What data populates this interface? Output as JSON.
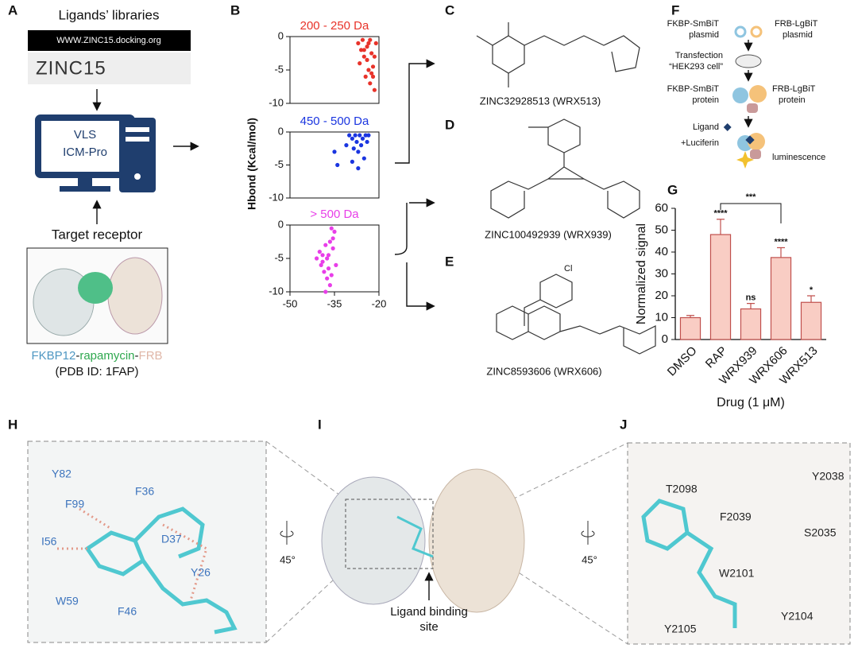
{
  "panel_labels": [
    "A",
    "B",
    "C",
    "D",
    "E",
    "F",
    "G",
    "H",
    "I",
    "J"
  ],
  "a": {
    "title": "Ligands’ libraries",
    "url": "WWW.ZINC15.docking.org",
    "database": "ZINC15",
    "software": [
      "VLS",
      "ICM-Pro"
    ],
    "receptor_label": "Target receptor",
    "complex": [
      "FKBP12",
      "-",
      "rapamycin",
      "-",
      "FRB"
    ],
    "pdb": "(PDB ID: 1FAP)"
  },
  "c": {
    "caption": "ZINC32928513 (WRX513)"
  },
  "d": {
    "caption": "ZINC100492939 (WRX939)"
  },
  "e": {
    "caption": "ZINC8593606 (WRX606)"
  },
  "f": {
    "smbit_plasmid": [
      "FKBP-SmBiT",
      "plasmid"
    ],
    "lgbit_plasmid": [
      "FRB-LgBiT",
      "plasmid"
    ],
    "transfection": [
      "Transfection",
      "“HEK293 cell”"
    ],
    "smbit_protein": [
      "FKBP-SmBiT",
      "protein"
    ],
    "lgbit_protein": [
      "FRB-LgBiT",
      "protein"
    ],
    "ligand": [
      "Ligand",
      "+Luciferin"
    ],
    "readout": "luminescence"
  },
  "h": {
    "residues": [
      "Y82",
      "F36",
      "F99",
      "D37",
      "I56",
      "Y26",
      "W59",
      "F46"
    ]
  },
  "i": {
    "rotation": "45°",
    "site": [
      "Ligand binding",
      "site"
    ]
  },
  "j": {
    "residues": [
      "T2098",
      "Y2038",
      "F2039",
      "S2035",
      "W2101",
      "Y2104",
      "Y2105"
    ]
  },
  "chart_data": [
    {
      "type": "scatter",
      "title": "200 - 250 Da",
      "color": "#e8332a",
      "xlim": [
        -50,
        -20
      ],
      "ylim": [
        -10,
        0
      ],
      "yticks": [
        0,
        -5,
        -10
      ],
      "x": [
        -27,
        -26.5,
        -26,
        -25.5,
        -25,
        -24.5,
        -24,
        -23.5,
        -23,
        -22.5,
        -22,
        -21.5,
        -21,
        -24,
        -23,
        -22,
        -25,
        -21.5,
        -22.5,
        -23.5
      ],
      "values": [
        -1,
        -4,
        -2,
        -0.5,
        -3,
        -6,
        -1.5,
        -5,
        -7,
        -2.5,
        -4.5,
        -8,
        -1,
        -3.5,
        -0.5,
        -6,
        -2,
        -3,
        -5.5,
        -1
      ]
    },
    {
      "type": "scatter",
      "title": "450 - 500 Da",
      "color": "#1a35e0",
      "ylabel": "Hbond (Kcal/mol)",
      "xlim": [
        -50,
        -20
      ],
      "ylim": [
        -10,
        0
      ],
      "yticks": [
        0,
        -5,
        -10
      ],
      "x": [
        -35,
        -34,
        -31,
        -30,
        -29,
        -28.5,
        -28,
        -27.5,
        -27,
        -26.5,
        -26,
        -25.5,
        -25,
        -24.5,
        -24,
        -23.5,
        -29,
        -27
      ],
      "values": [
        -3,
        -5,
        -2,
        -0.5,
        -1,
        -2.5,
        -0.5,
        -1.5,
        -3,
        -0.5,
        -2,
        -1,
        -4,
        -0.5,
        -1.5,
        -0.5,
        -4.5,
        -5.5
      ]
    },
    {
      "type": "scatter",
      "title": "> 500 Da",
      "color": "#e83ee8",
      "xlim": [
        -50,
        -20
      ],
      "ylim": [
        -10,
        0
      ],
      "yticks": [
        0,
        -5,
        -10
      ],
      "xticks": [
        -50,
        -35,
        -20
      ],
      "x": [
        -41,
        -40,
        -39.5,
        -39,
        -38.5,
        -38,
        -37.5,
        -37,
        -36.5,
        -36,
        -35.5,
        -35,
        -34.5,
        -38,
        -37,
        -36,
        -35.5,
        -39,
        -37.5,
        -36.5
      ],
      "values": [
        -5,
        -4,
        -6,
        -5.5,
        -7,
        -3,
        -8,
        -4.5,
        -9,
        -0.5,
        -2,
        -1,
        -6,
        -10,
        -6.5,
        -7.5,
        -3.5,
        -4.5,
        -5,
        -2.5
      ]
    },
    {
      "type": "bar",
      "ylabel": "Normalized signal",
      "xlabel": "Drug (1 μM)",
      "color": "#f9cdc4",
      "edgecolor": "#c0504d",
      "categories": [
        "DMSO",
        "RAP",
        "WRX939",
        "WRX606",
        "WRX513"
      ],
      "values": [
        10,
        48,
        14,
        37.5,
        17
      ],
      "errors": [
        1,
        7,
        2.5,
        4.5,
        3
      ],
      "significance": [
        null,
        "****",
        "ns",
        "****",
        "*"
      ],
      "bracket_annotation": "***",
      "ylim": [
        0,
        60
      ],
      "yticks": [
        0,
        10,
        20,
        30,
        40,
        50,
        60
      ]
    }
  ]
}
